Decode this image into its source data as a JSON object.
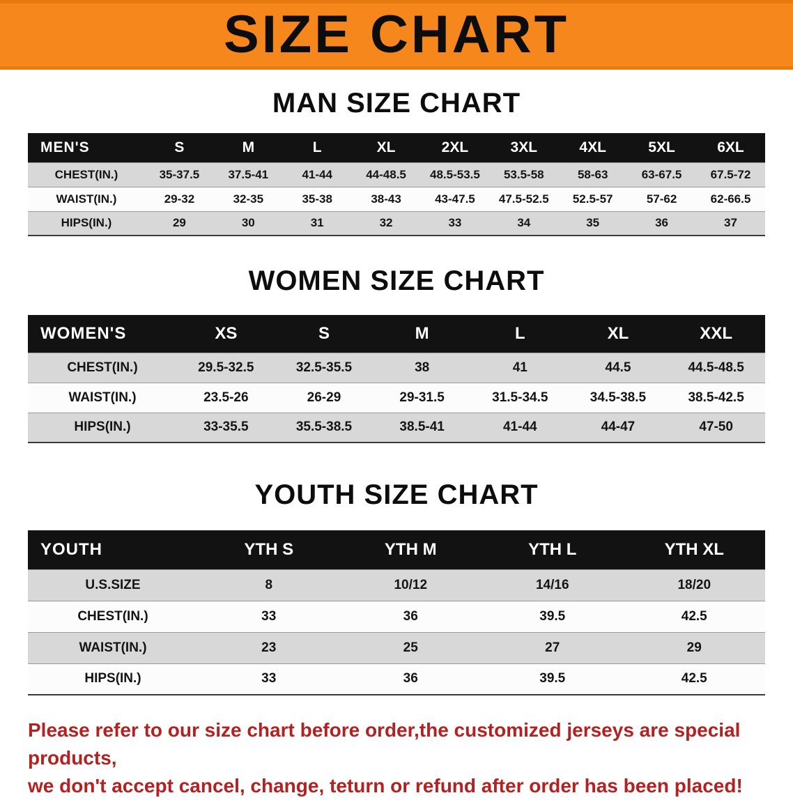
{
  "banner": {
    "title": "SIZE CHART",
    "bg": "#f6871d",
    "border": "#e67a10"
  },
  "charts": [
    {
      "title": "MAN SIZE CHART",
      "label": "MEN'S",
      "columns": [
        "S",
        "M",
        "L",
        "XL",
        "2XL",
        "3XL",
        "4XL",
        "5XL",
        "6XL"
      ],
      "rows": [
        {
          "label": "CHEST(IN.)",
          "values": [
            "35-37.5",
            "37.5-41",
            "41-44",
            "44-48.5",
            "48.5-53.5",
            "53.5-58",
            "58-63",
            "63-67.5",
            "67.5-72"
          ]
        },
        {
          "label": "WAIST(IN.)",
          "values": [
            "29-32",
            "32-35",
            "35-38",
            "38-43",
            "43-47.5",
            "47.5-52.5",
            "52.5-57",
            "57-62",
            "62-66.5"
          ]
        },
        {
          "label": "HIPS(IN.)",
          "values": [
            "29",
            "30",
            "31",
            "32",
            "33",
            "34",
            "35",
            "36",
            "37"
          ]
        }
      ]
    },
    {
      "title": "WOMEN SIZE CHART",
      "label": "WOMEN'S",
      "columns": [
        "XS",
        "S",
        "M",
        "L",
        "XL",
        "XXL"
      ],
      "rows": [
        {
          "label": "CHEST(IN.)",
          "values": [
            "29.5-32.5",
            "32.5-35.5",
            "38",
            "41",
            "44.5",
            "44.5-48.5"
          ]
        },
        {
          "label": "WAIST(IN.)",
          "values": [
            "23.5-26",
            "26-29",
            "29-31.5",
            "31.5-34.5",
            "34.5-38.5",
            "38.5-42.5"
          ]
        },
        {
          "label": "HIPS(IN.)",
          "values": [
            "33-35.5",
            "35.5-38.5",
            "38.5-41",
            "41-44",
            "44-47",
            "47-50"
          ]
        }
      ]
    },
    {
      "title": "YOUTH SIZE CHART",
      "label": "YOUTH",
      "columns": [
        "YTH S",
        "YTH M",
        "YTH L",
        "YTH XL"
      ],
      "rows": [
        {
          "label": "U.S.SIZE",
          "values": [
            "8",
            "10/12",
            "14/16",
            "18/20"
          ]
        },
        {
          "label": "CHEST(IN.)",
          "values": [
            "33",
            "36",
            "39.5",
            "42.5"
          ]
        },
        {
          "label": "WAIST(IN.)",
          "values": [
            "23",
            "25",
            "27",
            "29"
          ]
        },
        {
          "label": "HIPS(IN.)",
          "values": [
            "33",
            "36",
            "39.5",
            "42.5"
          ]
        }
      ]
    }
  ],
  "footer": {
    "line1": "Please refer to our size chart before order,the customized jerseys are special products,",
    "line2": "we don't accept cancel, change, teturn or refund after order has been placed!",
    "color": "#b22222"
  }
}
